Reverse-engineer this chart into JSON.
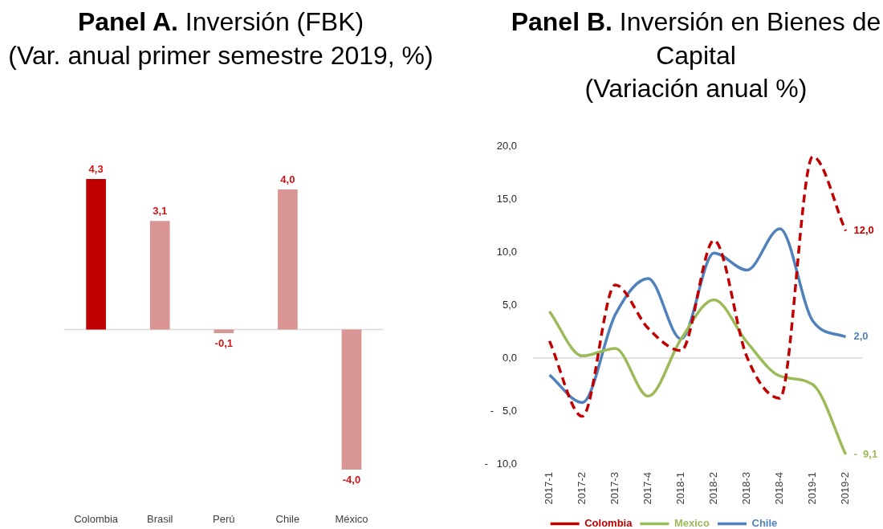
{
  "chart_data": [
    {
      "type": "bar",
      "title": "Panel A. Inversión (FBK)",
      "subtitle": "(Var. anual primer semestre 2019, %)",
      "categories": [
        "Colombia",
        "Brasil",
        "Perú",
        "Chile",
        "México"
      ],
      "values": [
        4.3,
        3.1,
        -0.1,
        4.0,
        -4.0
      ],
      "colors": [
        "#c00000",
        "#d99594",
        "#d99594",
        "#d99594",
        "#d99594"
      ],
      "value_labels": [
        "4,3",
        "3,1",
        "-0,1",
        "4,0",
        "-4,0"
      ],
      "tick_labels": "x"
    },
    {
      "type": "line",
      "title": "Panel B. Inversión en Bienes de Capital",
      "subtitle": "(Variación anual %)",
      "categories": [
        "2017-1",
        "2017-2",
        "2017-3",
        "2017-4",
        "2018-1",
        "2018-2",
        "2018-3",
        "2018-4",
        "2019-1",
        "2019-2"
      ],
      "ylim": [
        -10,
        20
      ],
      "yticks": [
        {
          "value": 20,
          "label": "20,0"
        },
        {
          "value": 15,
          "label": "15,0"
        },
        {
          "value": 10,
          "label": "10,0"
        },
        {
          "value": 5,
          "label": "5,0"
        },
        {
          "value": 0,
          "label": "0,0"
        },
        {
          "value": -5,
          "label": "-   5,0"
        },
        {
          "value": -10,
          "label": "-   10,0"
        }
      ],
      "legend": "bottom",
      "marker": "none",
      "series": [
        {
          "name": "Colombia",
          "color": "#c00000",
          "line_style": "dashed",
          "values": [
            1.6,
            -5.5,
            6.9,
            2.8,
            0.7,
            11.1,
            0.1,
            -3.8,
            19.0,
            12.0
          ],
          "value_labels": [
            null,
            null,
            null,
            null,
            null,
            null,
            null,
            null,
            null,
            "12,0"
          ]
        },
        {
          "name": "Mexico",
          "color": "#9bbb59",
          "line_style": "solid",
          "values": [
            4.4,
            0.2,
            0.9,
            -3.6,
            1.8,
            5.5,
            1.5,
            -1.7,
            -2.5,
            -9.1
          ],
          "value_labels": [
            null,
            null,
            null,
            null,
            null,
            null,
            null,
            null,
            null,
            "-  9,1"
          ]
        },
        {
          "name": "Chile",
          "color": "#4f81bd",
          "line_style": "solid",
          "values": [
            -1.6,
            -4.2,
            4.1,
            7.5,
            1.8,
            9.9,
            8.3,
            12.2,
            3.5,
            2.0
          ],
          "value_labels": [
            null,
            null,
            null,
            null,
            null,
            null,
            null,
            null,
            null,
            "2,0"
          ]
        }
      ]
    }
  ]
}
